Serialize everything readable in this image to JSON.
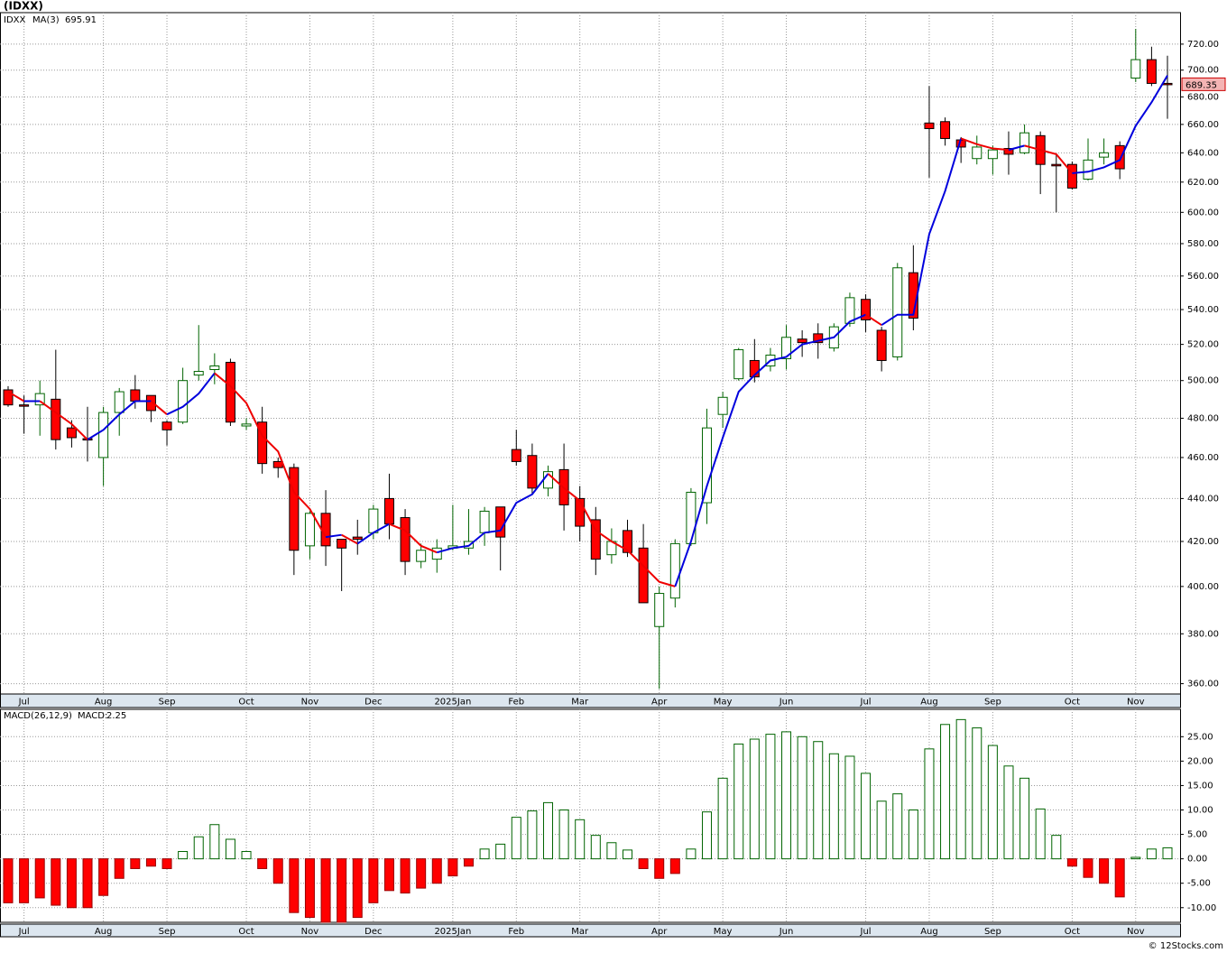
{
  "title": "(IDXX)",
  "copyright": "© 12Stocks.com",
  "chart_data": [
    {
      "type": "candlestick",
      "symbol": "IDXX",
      "categories": [
        null,
        "Jul",
        null,
        null,
        null,
        null,
        "Aug",
        null,
        null,
        null,
        "Sep",
        null,
        null,
        null,
        null,
        "Oct",
        null,
        null,
        null,
        "Nov",
        null,
        null,
        null,
        "Dec",
        null,
        null,
        null,
        null,
        "2025Jan",
        null,
        null,
        null,
        "Feb",
        null,
        null,
        null,
        "Mar",
        null,
        null,
        null,
        null,
        "Apr",
        null,
        null,
        null,
        "May",
        null,
        null,
        null,
        "Jun",
        null,
        null,
        null,
        null,
        "Jul",
        null,
        null,
        null,
        "Aug",
        null,
        null,
        null,
        "Sep",
        null,
        null,
        null,
        null,
        "Oct",
        null,
        null,
        null,
        "Nov",
        null,
        null
      ],
      "open": [
        495,
        487,
        487,
        490,
        475,
        469.5,
        460,
        483,
        495,
        492,
        478,
        478,
        503,
        506,
        510,
        476,
        478,
        458,
        455,
        418,
        433,
        421,
        422,
        424,
        440,
        431,
        411,
        412,
        417,
        417,
        424,
        436,
        464,
        461,
        445,
        454,
        440,
        430,
        414,
        425,
        417,
        383,
        395,
        419,
        438,
        482,
        501,
        511,
        508,
        512,
        523,
        526,
        518,
        532,
        546,
        528,
        513,
        562,
        661,
        662,
        649,
        636,
        636,
        643,
        640,
        652,
        632,
        632,
        622,
        637,
        645,
        694,
        708,
        690
      ],
      "high": [
        497,
        492,
        500,
        517,
        479,
        486,
        486,
        496,
        503,
        492,
        479,
        507,
        531,
        515,
        512,
        480,
        486,
        460,
        457,
        434,
        444,
        421,
        430,
        437,
        452,
        435,
        419,
        421,
        437,
        435,
        436,
        436,
        474,
        467,
        456,
        467,
        446,
        436,
        426,
        430,
        428,
        400,
        421,
        445,
        485,
        494,
        518,
        523,
        518,
        531,
        528,
        532,
        532,
        550,
        549,
        530,
        568,
        579,
        688,
        665,
        651,
        652,
        645,
        655,
        660,
        655,
        639,
        634,
        650,
        650,
        648,
        732,
        718,
        711
      ],
      "low": [
        486,
        472,
        471,
        464,
        465,
        458,
        446,
        471,
        485,
        478,
        466,
        477,
        500,
        498,
        476,
        474,
        452,
        450,
        405,
        412,
        409,
        398,
        414,
        421,
        421,
        405,
        408,
        406,
        416,
        414,
        418,
        407,
        456,
        442,
        441,
        425,
        420,
        405,
        410,
        413,
        393,
        358,
        391,
        418,
        428,
        475,
        500,
        499,
        505,
        506,
        513,
        512,
        516,
        530,
        527,
        505,
        511,
        528,
        623,
        645,
        633,
        632,
        625,
        625,
        639,
        612,
        600,
        615,
        621,
        632,
        622,
        691,
        688,
        664
      ],
      "close": [
        487,
        486.5,
        493,
        469,
        470,
        469,
        483,
        494,
        489,
        484,
        474,
        500,
        505,
        508,
        478,
        477,
        457,
        455,
        416,
        433,
        418,
        417,
        421,
        435,
        428,
        411,
        416,
        417,
        418,
        420,
        434,
        422,
        458,
        445,
        453,
        437,
        427,
        412,
        420,
        415,
        393,
        397,
        419,
        443,
        475,
        491,
        517,
        502,
        514,
        524,
        521,
        521,
        530,
        547,
        534,
        511,
        565,
        535,
        657,
        650,
        644,
        644,
        642,
        639,
        654,
        632,
        631,
        616,
        635,
        640,
        629,
        708,
        690,
        689.35
      ],
      "up_color": "#006400",
      "down_color": "#ff0000",
      "ma": {
        "name": "MA(3)",
        "color": "#0000dd",
        "down_color": "#ee0000",
        "values": [
          494,
          489,
          489,
          483,
          477,
          469,
          474,
          482,
          489,
          489,
          482,
          486,
          493,
          504,
          497,
          488,
          471,
          463,
          443,
          435,
          422,
          423,
          419,
          424,
          428,
          425,
          418,
          415,
          417,
          418,
          424,
          425,
          438,
          442,
          452,
          445,
          439,
          425,
          420,
          416,
          409,
          402,
          400,
          420,
          446,
          470,
          494,
          503,
          511,
          513,
          520,
          522,
          524,
          533,
          537,
          531,
          537,
          537,
          586,
          614,
          650,
          646,
          643,
          642,
          645,
          642,
          639,
          626,
          627,
          630,
          635,
          659,
          676,
          695.91
        ]
      },
      "ylim": [
        356,
        745
      ],
      "log_scale": true,
      "grid": true,
      "yticks": [
        {
          "value": 360,
          "label": "360.00"
        },
        {
          "value": 380,
          "label": "380.00"
        },
        {
          "value": 400,
          "label": "400.00"
        },
        {
          "value": 420,
          "label": "420.00"
        },
        {
          "value": 440,
          "label": "440.00"
        },
        {
          "value": 460,
          "label": "460.00"
        },
        {
          "value": 480,
          "label": "480.00"
        },
        {
          "value": 500,
          "label": "500.00"
        },
        {
          "value": 520,
          "label": "520.00"
        },
        {
          "value": 540,
          "label": "540.00"
        },
        {
          "value": 560,
          "label": "560.00"
        },
        {
          "value": 580,
          "label": "580.00"
        },
        {
          "value": 600,
          "label": "600.00"
        },
        {
          "value": 620,
          "label": "620.00"
        },
        {
          "value": 640,
          "label": "640.00"
        },
        {
          "value": 660,
          "label": "660.00"
        },
        {
          "value": 680,
          "label": "680.00"
        },
        {
          "value": 700,
          "label": "700.00"
        },
        {
          "value": 720,
          "label": "720.00"
        }
      ]
    },
    {
      "type": "bar",
      "name": "MACD(26,12,9)",
      "value_name": "MACD:",
      "categories": [
        null,
        "Jul",
        null,
        null,
        null,
        null,
        "Aug",
        null,
        null,
        null,
        "Sep",
        null,
        null,
        null,
        null,
        "Oct",
        null,
        null,
        null,
        "Nov",
        null,
        null,
        null,
        "Dec",
        null,
        null,
        null,
        null,
        "2025Jan",
        null,
        null,
        null,
        "Feb",
        null,
        null,
        null,
        "Mar",
        null,
        null,
        null,
        null,
        "Apr",
        null,
        null,
        null,
        "May",
        null,
        null,
        null,
        "Jun",
        null,
        null,
        null,
        null,
        "Jul",
        null,
        null,
        null,
        "Aug",
        null,
        null,
        null,
        "Sep",
        null,
        null,
        null,
        null,
        "Oct",
        null,
        null,
        null,
        "Nov",
        null,
        null
      ],
      "values": [
        -9,
        -9,
        -8,
        -9.5,
        -10,
        -10,
        -7.5,
        -4,
        -2,
        -1.5,
        -2,
        1.5,
        4.5,
        7,
        4,
        1.5,
        -2,
        -5,
        -11,
        -12,
        -13,
        -13,
        -12,
        -9,
        -6.5,
        -7,
        -6,
        -5,
        -3.5,
        -1.5,
        2,
        3,
        8.5,
        9.8,
        11.5,
        10,
        8,
        4.8,
        3.3,
        1.8,
        -2,
        -4,
        -3,
        2,
        9.6,
        16.5,
        23.5,
        24.5,
        25.5,
        26,
        25,
        24,
        21.5,
        21,
        17.5,
        11.8,
        13.3,
        10,
        22.5,
        27.5,
        28.5,
        26.8,
        23.2,
        19,
        16.5,
        10.2,
        4.8,
        -1.5,
        -3.8,
        -5,
        -7.8,
        0.3,
        2,
        2.25
      ],
      "up_color": "#006400",
      "down_color": "#ff0000",
      "ylim": [
        -13,
        30.6
      ],
      "grid": true,
      "yticks": [
        {
          "value": -10,
          "label": "-10.00"
        },
        {
          "value": -5,
          "label": "-5.00"
        },
        {
          "value": 0,
          "label": "0.00"
        },
        {
          "value": 5,
          "label": "5.00"
        },
        {
          "value": 10,
          "label": "10.00"
        },
        {
          "value": 15,
          "label": "15.00"
        },
        {
          "value": 20,
          "label": "20.00"
        },
        {
          "value": 25,
          "label": "25.00"
        }
      ]
    }
  ]
}
